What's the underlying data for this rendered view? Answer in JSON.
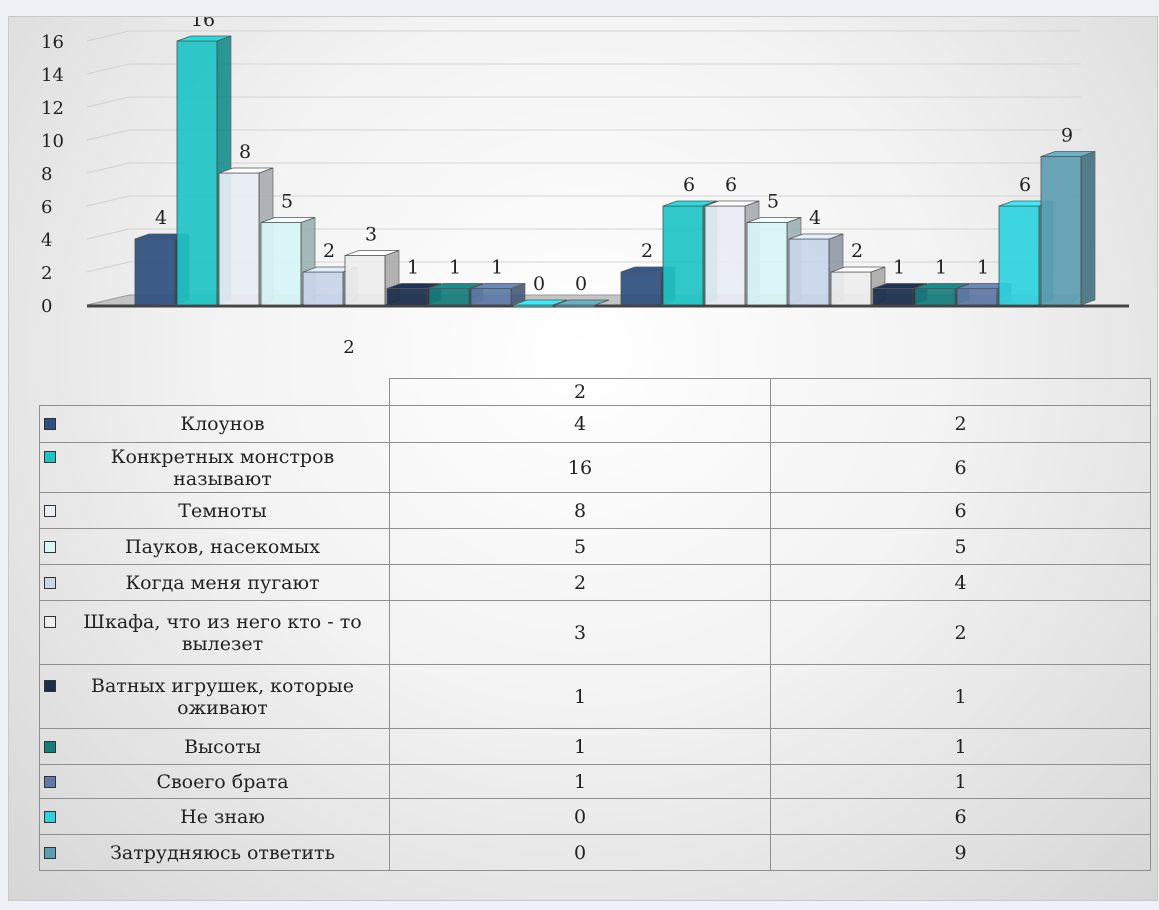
{
  "chart_data": {
    "type": "bar",
    "categories": [
      "2",
      ""
    ],
    "ylim": [
      0,
      16
    ],
    "yticks": [
      0,
      2,
      4,
      6,
      8,
      10,
      12,
      14,
      16
    ],
    "grid": true,
    "legend": "table-below",
    "series": [
      {
        "name": "Клоунов",
        "values": [
          4,
          2
        ],
        "color": "#2e4f7f"
      },
      {
        "name": "Конкретных монстров называют",
        "values": [
          16,
          6
        ],
        "color": "#1fc4c4"
      },
      {
        "name": "Темноты",
        "values": [
          8,
          6
        ],
        "color": "#e9edf5"
      },
      {
        "name": "Пауков, насекомых",
        "values": [
          5,
          5
        ],
        "color": "#d8f6f8"
      },
      {
        "name": "Когда меня пугают",
        "values": [
          2,
          4
        ],
        "color": "#c9d6ea"
      },
      {
        "name": "Шкафа, что из него кто - то вылезет",
        "values": [
          3,
          2
        ],
        "color": "#eeeeee"
      },
      {
        "name": "Ватных игрушек, которые оживают",
        "values": [
          1,
          1
        ],
        "color": "#1c2e4c"
      },
      {
        "name": "Высоты",
        "values": [
          1,
          1
        ],
        "color": "#167d7d"
      },
      {
        "name": "Своего брата",
        "values": [
          1,
          1
        ],
        "color": "#5f7aa6"
      },
      {
        "name": "Не знаю",
        "values": [
          0,
          6
        ],
        "color": "#2fd3df"
      },
      {
        "name": "Затрудняюсь ответить",
        "values": [
          0,
          9
        ],
        "color": "#5d9fb2"
      }
    ]
  },
  "table": {
    "header": [
      "2",
      ""
    ],
    "rows": [
      {
        "label": "Клоунов",
        "values": [
          "4",
          "2"
        ]
      },
      {
        "label": "Конкретных монстров называют",
        "values": [
          "16",
          "6"
        ]
      },
      {
        "label": "Темноты",
        "values": [
          "8",
          "6"
        ]
      },
      {
        "label": "Пауков, насекомых",
        "values": [
          "5",
          "5"
        ]
      },
      {
        "label": "Когда меня пугают",
        "values": [
          "2",
          "4"
        ]
      },
      {
        "label": "Шкафа, что из него кто - то вылезет",
        "values": [
          "3",
          "2"
        ]
      },
      {
        "label": "Ватных игрушек, которые оживают",
        "values": [
          "1",
          "1"
        ]
      },
      {
        "label": "Высоты",
        "values": [
          "1",
          "1"
        ]
      },
      {
        "label": "Своего брата",
        "values": [
          "1",
          "1"
        ]
      },
      {
        "label": "Не знаю",
        "values": [
          "0",
          "6"
        ]
      },
      {
        "label": "Затрудняюсь ответить",
        "values": [
          "0",
          "9"
        ]
      }
    ]
  }
}
